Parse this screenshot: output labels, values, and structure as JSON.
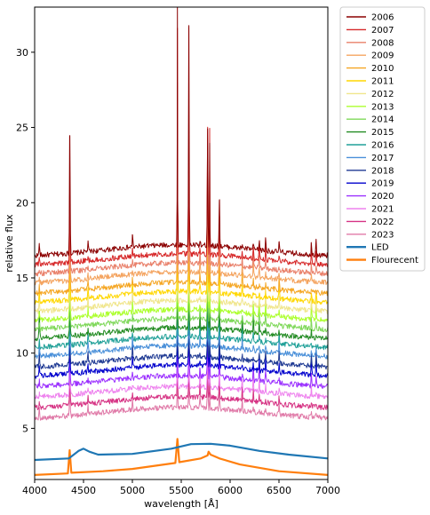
{
  "chart_data": {
    "type": "line",
    "title": "",
    "xlabel": "wavelength [Å]",
    "ylabel": "relative flux",
    "xlim": [
      4000,
      7000
    ],
    "ylim": [
      1.6,
      33
    ],
    "x_ticks": [
      4000,
      4500,
      5000,
      5500,
      6000,
      6500,
      7000
    ],
    "y_ticks": [
      5,
      10,
      15,
      20,
      25,
      30
    ],
    "grid": false,
    "legend_position": "outside-right",
    "emission_lines": [
      4047,
      4358,
      4546,
      5000,
      5461,
      5577,
      5690,
      5770,
      5791,
      5892,
      6125,
      6236,
      6300,
      6363,
      6500,
      6830,
      6880
    ],
    "series": [
      {
        "name": "2006",
        "color": "#8b0000",
        "baseline": 16.6,
        "peaks": [
          {
            "x": 4358,
            "h": 7.8
          },
          {
            "x": 5461,
            "h": 15.8
          },
          {
            "x": 5577,
            "h": 14.4
          },
          {
            "x": 5770,
            "h": 7.8
          },
          {
            "x": 5791,
            "h": 6.8
          },
          {
            "x": 5892,
            "h": 3.1
          }
        ]
      },
      {
        "name": "2007",
        "color": "#d62728",
        "baseline": 16.0,
        "peaks": [
          {
            "x": 4358,
            "h": 4.5
          },
          {
            "x": 5461,
            "h": 15.0
          },
          {
            "x": 5577,
            "h": 6.0
          },
          {
            "x": 5770,
            "h": 8.6
          },
          {
            "x": 5791,
            "h": 8.4
          },
          {
            "x": 5892,
            "h": 2.6
          }
        ]
      },
      {
        "name": "2008",
        "color": "#e9806a",
        "baseline": 15.4,
        "peaks": [
          {
            "x": 4358,
            "h": 4.2
          },
          {
            "x": 5461,
            "h": 12.0
          },
          {
            "x": 5577,
            "h": 5.5
          },
          {
            "x": 5770,
            "h": 7.0
          },
          {
            "x": 5791,
            "h": 7.0
          },
          {
            "x": 5892,
            "h": 2.4
          }
        ]
      },
      {
        "name": "2009",
        "color": "#f4a460",
        "baseline": 14.8,
        "peaks": [
          {
            "x": 4358,
            "h": 4.0
          },
          {
            "x": 5461,
            "h": 10.0
          },
          {
            "x": 5577,
            "h": 5.0
          },
          {
            "x": 5770,
            "h": 6.0
          },
          {
            "x": 5791,
            "h": 6.0
          },
          {
            "x": 5892,
            "h": 2.3
          }
        ]
      },
      {
        "name": "2010",
        "color": "#f5a623",
        "baseline": 14.1,
        "peaks": [
          {
            "x": 4358,
            "h": 3.8
          },
          {
            "x": 5461,
            "h": 9.0
          },
          {
            "x": 5577,
            "h": 4.6
          },
          {
            "x": 5770,
            "h": 5.4
          },
          {
            "x": 5791,
            "h": 5.4
          },
          {
            "x": 5892,
            "h": 2.2
          }
        ]
      },
      {
        "name": "2011",
        "color": "#ffd700",
        "baseline": 13.5,
        "peaks": [
          {
            "x": 4358,
            "h": 3.6
          },
          {
            "x": 5461,
            "h": 8.0
          },
          {
            "x": 5577,
            "h": 4.2
          },
          {
            "x": 5770,
            "h": 5.0
          },
          {
            "x": 5791,
            "h": 5.0
          },
          {
            "x": 5892,
            "h": 2.1
          }
        ]
      },
      {
        "name": "2012",
        "color": "#f0e68c",
        "baseline": 12.9,
        "peaks": [
          {
            "x": 4358,
            "h": 3.4
          },
          {
            "x": 5461,
            "h": 7.5
          },
          {
            "x": 5577,
            "h": 3.9
          },
          {
            "x": 5770,
            "h": 4.6
          },
          {
            "x": 5791,
            "h": 4.6
          },
          {
            "x": 5892,
            "h": 2.0
          }
        ]
      },
      {
        "name": "2013",
        "color": "#adff2f",
        "baseline": 12.3,
        "peaks": [
          {
            "x": 4358,
            "h": 3.2
          },
          {
            "x": 5461,
            "h": 7.0
          },
          {
            "x": 5577,
            "h": 3.6
          },
          {
            "x": 5770,
            "h": 4.3
          },
          {
            "x": 5791,
            "h": 4.3
          },
          {
            "x": 5892,
            "h": 1.9
          }
        ]
      },
      {
        "name": "2014",
        "color": "#7fd85a",
        "baseline": 11.7,
        "peaks": [
          {
            "x": 4358,
            "h": 3.1
          },
          {
            "x": 5461,
            "h": 6.6
          },
          {
            "x": 5577,
            "h": 3.4
          },
          {
            "x": 5770,
            "h": 4.0
          },
          {
            "x": 5791,
            "h": 4.0
          },
          {
            "x": 5892,
            "h": 1.8
          }
        ]
      },
      {
        "name": "2015",
        "color": "#228b22",
        "baseline": 11.1,
        "peaks": [
          {
            "x": 4047,
            "h": 1.8
          },
          {
            "x": 4358,
            "h": 3.0
          },
          {
            "x": 5461,
            "h": 6.2
          },
          {
            "x": 5577,
            "h": 3.2
          },
          {
            "x": 5770,
            "h": 3.8
          },
          {
            "x": 5791,
            "h": 3.8
          },
          {
            "x": 5892,
            "h": 1.7
          }
        ]
      },
      {
        "name": "2016",
        "color": "#20a098",
        "baseline": 10.5,
        "peaks": [
          {
            "x": 4358,
            "h": 2.9
          },
          {
            "x": 5461,
            "h": 5.8
          },
          {
            "x": 5577,
            "h": 3.0
          },
          {
            "x": 5770,
            "h": 3.6
          },
          {
            "x": 5791,
            "h": 3.6
          },
          {
            "x": 5892,
            "h": 1.6
          }
        ]
      },
      {
        "name": "2017",
        "color": "#4a90d9",
        "baseline": 9.9,
        "peaks": [
          {
            "x": 4358,
            "h": 2.8
          },
          {
            "x": 5461,
            "h": 5.5
          },
          {
            "x": 5577,
            "h": 2.8
          },
          {
            "x": 5770,
            "h": 3.4
          },
          {
            "x": 5791,
            "h": 3.4
          },
          {
            "x": 5892,
            "h": 1.5
          }
        ]
      },
      {
        "name": "2018",
        "color": "#1f3a93",
        "baseline": 9.2,
        "peaks": [
          {
            "x": 4358,
            "h": 2.7
          },
          {
            "x": 5461,
            "h": 5.2
          },
          {
            "x": 5577,
            "h": 2.6
          },
          {
            "x": 5770,
            "h": 3.2
          },
          {
            "x": 5791,
            "h": 3.2
          },
          {
            "x": 5892,
            "h": 1.4
          }
        ]
      },
      {
        "name": "2019",
        "color": "#0000cd",
        "baseline": 8.6,
        "peaks": [
          {
            "x": 4358,
            "h": 2.6
          },
          {
            "x": 5461,
            "h": 5.0
          },
          {
            "x": 5577,
            "h": 2.5
          },
          {
            "x": 5770,
            "h": 3.0
          },
          {
            "x": 5791,
            "h": 3.0
          },
          {
            "x": 5892,
            "h": 1.3
          }
        ]
      },
      {
        "name": "2020",
        "color": "#9b30ff",
        "baseline": 7.9,
        "peaks": [
          {
            "x": 4358,
            "h": 2.5
          },
          {
            "x": 5461,
            "h": 4.8
          },
          {
            "x": 5577,
            "h": 2.4
          },
          {
            "x": 5770,
            "h": 2.9
          },
          {
            "x": 5791,
            "h": 2.9
          },
          {
            "x": 5892,
            "h": 1.3
          }
        ]
      },
      {
        "name": "2021",
        "color": "#ee82ee",
        "baseline": 7.2,
        "peaks": [
          {
            "x": 4358,
            "h": 2.4
          },
          {
            "x": 5461,
            "h": 4.6
          },
          {
            "x": 5577,
            "h": 2.3
          },
          {
            "x": 5770,
            "h": 2.8
          },
          {
            "x": 5791,
            "h": 2.8
          },
          {
            "x": 5892,
            "h": 1.2
          }
        ]
      },
      {
        "name": "2022",
        "color": "#d63384",
        "baseline": 6.5,
        "peaks": [
          {
            "x": 4358,
            "h": 2.3
          },
          {
            "x": 5461,
            "h": 4.4
          },
          {
            "x": 5577,
            "h": 2.2
          },
          {
            "x": 5770,
            "h": 2.7
          },
          {
            "x": 5791,
            "h": 2.7
          },
          {
            "x": 5892,
            "h": 1.2
          }
        ]
      },
      {
        "name": "2023",
        "color": "#e07aa8",
        "baseline": 5.8,
        "peaks": [
          {
            "x": 4358,
            "h": 2.2
          },
          {
            "x": 5461,
            "h": 4.2
          },
          {
            "x": 5577,
            "h": 2.1
          },
          {
            "x": 5770,
            "h": 2.6
          },
          {
            "x": 5791,
            "h": 2.6
          },
          {
            "x": 5892,
            "h": 1.1
          }
        ]
      },
      {
        "name": "LED",
        "color": "#1f77b4",
        "points": [
          [
            4000,
            2.9
          ],
          [
            4350,
            3.0
          ],
          [
            4450,
            3.5
          ],
          [
            4500,
            3.65
          ],
          [
            4560,
            3.45
          ],
          [
            4650,
            3.25
          ],
          [
            5000,
            3.3
          ],
          [
            5400,
            3.65
          ],
          [
            5600,
            3.95
          ],
          [
            5800,
            3.97
          ],
          [
            6000,
            3.85
          ],
          [
            6300,
            3.5
          ],
          [
            6600,
            3.25
          ],
          [
            7000,
            3.0
          ]
        ]
      },
      {
        "name": "Flourecent",
        "color": "#ff7f0e",
        "points": [
          [
            4000,
            1.9
          ],
          [
            4340,
            2.0
          ],
          [
            4358,
            3.55
          ],
          [
            4375,
            2.05
          ],
          [
            4700,
            2.15
          ],
          [
            5000,
            2.3
          ],
          [
            5440,
            2.7
          ],
          [
            5461,
            4.3
          ],
          [
            5480,
            2.75
          ],
          [
            5700,
            3.0
          ],
          [
            5770,
            3.2
          ],
          [
            5780,
            3.45
          ],
          [
            5800,
            3.25
          ],
          [
            5891,
            3.0
          ],
          [
            6100,
            2.6
          ],
          [
            6500,
            2.15
          ],
          [
            7000,
            1.9
          ]
        ]
      }
    ]
  }
}
